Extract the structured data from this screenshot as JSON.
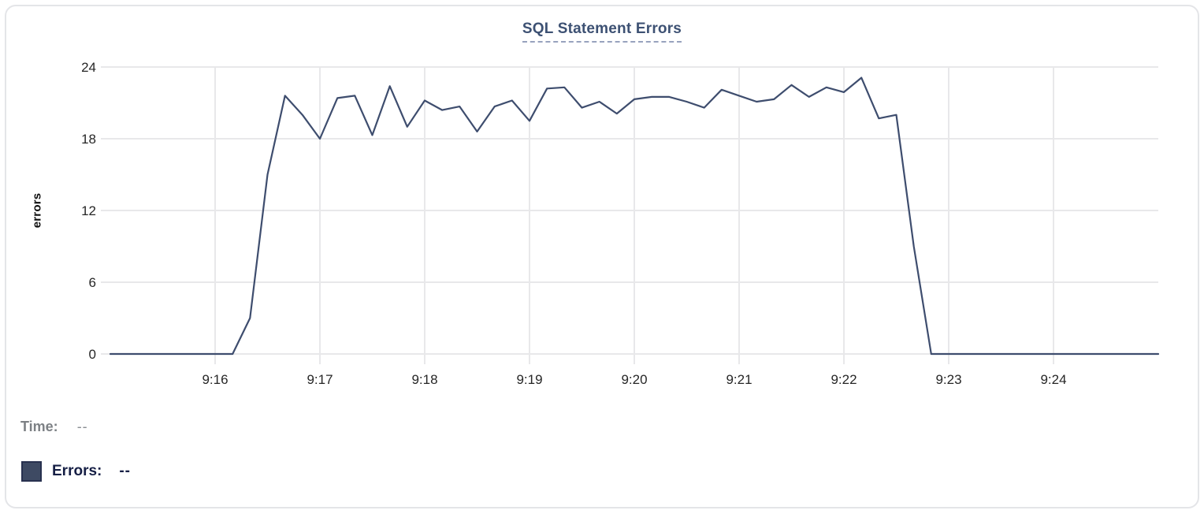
{
  "header": {
    "title": "SQL Statement Errors"
  },
  "chart_data": {
    "type": "line",
    "title": "SQL Statement Errors",
    "xlabel": "",
    "ylabel": "errors",
    "ylim": [
      0,
      24
    ],
    "y_ticks": [
      0,
      6,
      12,
      18,
      24
    ],
    "grid": true,
    "legend_position": "bottom-left",
    "x_axis": {
      "start_time": "9:15:00",
      "end_time": "9:25:00",
      "interval_seconds": 10,
      "tick_labels": [
        "9:16",
        "9:17",
        "9:18",
        "9:19",
        "9:20",
        "9:21",
        "9:22",
        "9:23",
        "9:24"
      ]
    },
    "series": [
      {
        "name": "Errors",
        "color": "#3e4d6e",
        "values": [
          0,
          0,
          0,
          0,
          0,
          0,
          0,
          0,
          3,
          15,
          21.6,
          20,
          18,
          21.4,
          21.6,
          18.3,
          22.4,
          19,
          21.2,
          20.4,
          20.7,
          18.6,
          20.7,
          21.2,
          19.5,
          22.2,
          22.3,
          20.6,
          21.1,
          20.1,
          21.3,
          21.5,
          21.5,
          21.1,
          20.6,
          22.1,
          21.6,
          21.1,
          21.3,
          22.5,
          21.5,
          22.3,
          21.9,
          23.1,
          19.7,
          20,
          9,
          0,
          0,
          0,
          0,
          0,
          0,
          0,
          0,
          0,
          0,
          0,
          0,
          0,
          0
        ]
      }
    ]
  },
  "tooltip_panel": {
    "time_label": "Time:",
    "time_value": "--",
    "errors_label": "Errors:",
    "errors_value": "--",
    "swatch_color": "#3e4a63"
  },
  "colors": {
    "line": "#3e4d6e",
    "title": "#3d5173",
    "title_underline": "#98a2be",
    "grid": "#e8e8ea",
    "tick_text": "#262626",
    "card_border": "#e4e5e8"
  }
}
